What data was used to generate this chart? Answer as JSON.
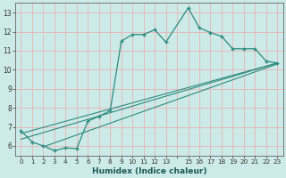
{
  "title": "",
  "xlabel": "Humidex (Indice chaleur)",
  "ylabel": "",
  "bg_color": "#cceae7",
  "grid_color": "#e8b4b4",
  "line_color": "#2d8b80",
  "xlim": [
    -0.5,
    23.5
  ],
  "ylim": [
    5.5,
    13.5
  ],
  "yticks": [
    6,
    7,
    8,
    9,
    10,
    11,
    12,
    13
  ],
  "xticks": [
    0,
    1,
    2,
    3,
    4,
    5,
    6,
    7,
    8,
    9,
    10,
    11,
    12,
    13,
    14,
    15,
    16,
    17,
    18,
    19,
    20,
    21,
    22,
    23
  ],
  "xtick_labels": [
    "0",
    "1",
    "2",
    "3",
    "4",
    "5",
    "6",
    "7",
    "8",
    "9",
    "10",
    "11",
    "12",
    "13",
    "",
    "15",
    "16",
    "17",
    "18",
    "19",
    "20",
    "21",
    "22",
    "23"
  ],
  "line1_x": [
    0,
    1,
    2,
    3,
    4,
    5,
    6,
    7,
    8,
    9,
    10,
    11,
    12,
    13,
    15,
    16,
    17,
    18,
    19,
    20,
    21,
    22,
    23
  ],
  "line1_y": [
    6.8,
    6.2,
    6.0,
    5.75,
    5.9,
    5.85,
    7.3,
    7.55,
    7.85,
    11.5,
    11.85,
    11.85,
    12.1,
    11.45,
    13.25,
    12.2,
    11.95,
    11.75,
    11.1,
    11.1,
    11.1,
    10.45,
    10.35
  ],
  "line2_x": [
    0,
    23
  ],
  "line2_y": [
    6.65,
    10.35
  ],
  "line3_x": [
    0,
    23
  ],
  "line3_y": [
    6.35,
    10.35
  ],
  "line4_x": [
    2,
    23
  ],
  "line4_y": [
    5.95,
    10.3
  ]
}
